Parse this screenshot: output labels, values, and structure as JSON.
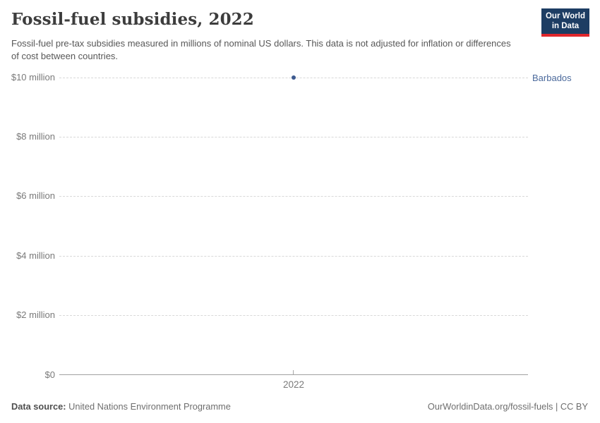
{
  "header": {
    "title": "Fossil-fuel subsidies, 2022",
    "subtitle": "Fossil-fuel pre-tax subsidies measured in millions of nominal US dollars. This data is not adjusted for inflation or differences of cost between countries.",
    "logo": {
      "line1": "Our World",
      "line2": "in Data",
      "bg_color": "#1d3d63",
      "accent_color": "#e0272c"
    }
  },
  "chart_data": {
    "type": "scatter",
    "title": "Fossil-fuel subsidies, 2022",
    "x": [
      2022
    ],
    "series": [
      {
        "name": "Barbados",
        "values": [
          10
        ]
      }
    ],
    "unit": "millions of nominal US dollars",
    "ylim": [
      0,
      10
    ],
    "yticks": [
      "$10 million",
      "$8 million",
      "$6 million",
      "$4 million",
      "$2 million",
      "$0"
    ],
    "xticks": [
      "2022"
    ],
    "grid": "horizontal dashed",
    "legend_position": "right of last point",
    "point_color": "#3d5a8f",
    "entity_label_color": "#4c6a9c",
    "gridline_color": "#d8d8d8",
    "axis_color": "#a1a1a1"
  },
  "footer": {
    "source_label": "Data source:",
    "source_value": " United Nations Environment Programme",
    "attribution": "OurWorldinData.org/fossil-fuels | CC BY"
  }
}
